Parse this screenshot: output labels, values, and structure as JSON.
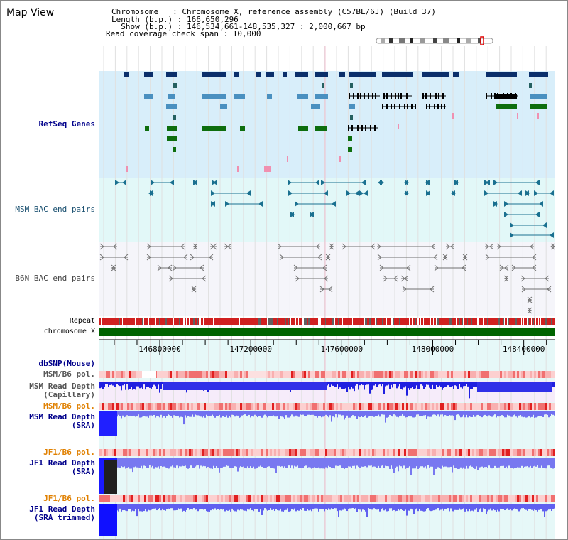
{
  "app": {
    "title": "Map View"
  },
  "header": {
    "line1": "Chromosome   : Chromosome X, reference assembly (C57BL/6J) (Build 37)",
    "line2": "Length (b.p.) : 166,650,296",
    "line3": "  Show (b.p.) : 146,534,661-148,535,327 : 2,000,667 bp",
    "line4": "Read coverage check span : 10,000"
  },
  "tracks": {
    "refseq": "RefSeq Genes",
    "msm_bac": "MSM BAC end pairs",
    "b6n_bac": "B6N BAC end pairs",
    "repeat": "Repeat",
    "chromosome": "chromosome X",
    "dbsnp": "dbSNP(Mouse)",
    "msm_pol": "MSM/B6 pol.",
    "msm_depth_cap": "MSM Read Depth\n(Capillary)",
    "msm_pol2": "MSM/B6 pol.",
    "msm_depth_sra": "MSM Read Depth\n(SRA)",
    "jf1_pol": "JF1/B6 pol.",
    "jf1_depth_sra": "JF1 Read Depth\n(SRA)",
    "jf1_pol2": "JF1/B6 pol.",
    "jf1_depth_trim": "JF1 Read Depth\n(SRA trimmed)"
  },
  "axis": {
    "ticks": [
      146800000,
      147200000,
      147600000,
      148000000,
      148400000
    ],
    "tick_labels": [
      "146800000",
      "147200000",
      "147600000",
      "148000000",
      "148400000"
    ],
    "range": [
      146534661,
      148535327
    ]
  },
  "colors": {
    "gene_dark": "#0b2f6b",
    "gene_mid": "#4a90c0",
    "gene_green": "#0e6e0e",
    "bac_msm": "#1a7090",
    "bac_b6n": "#707070",
    "depth_blue": "#1a1aff",
    "label_blue": "#00008b",
    "label_orange": "#e08000"
  }
}
